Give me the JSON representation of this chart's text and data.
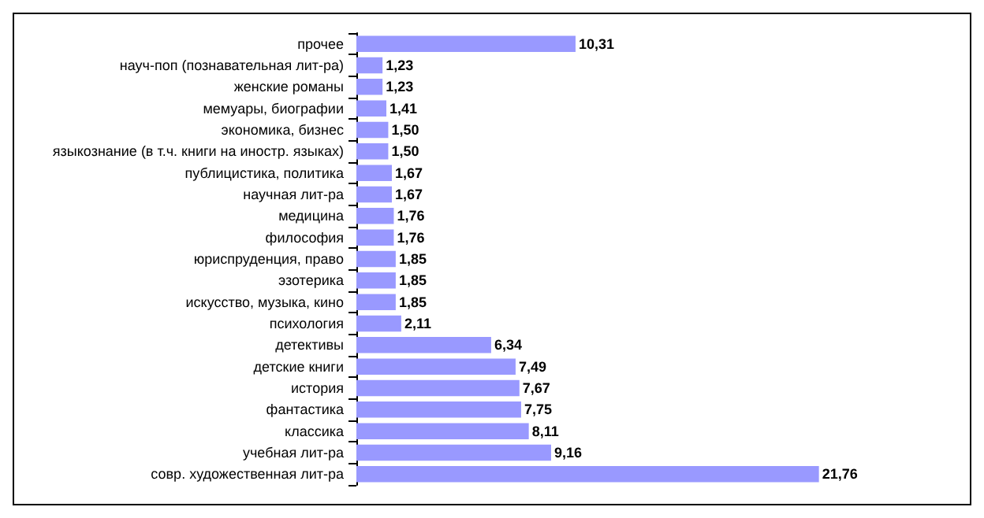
{
  "chart_data": {
    "type": "bar",
    "orientation": "horizontal",
    "color": "#9999ff",
    "categories": [
      "прочее",
      "науч-поп (познавательная лит-ра)",
      "женские романы",
      "мемуары, биографии",
      "экономика, бизнес",
      "языкознание (в т.ч. книги на иностр. языках)",
      "публицистика, политика",
      "научная лит-ра",
      "медицина",
      "философия",
      "юриспруденция, право",
      "эзотерика",
      "искусство, музыка, кино",
      "психология",
      "детективы",
      "детские книги",
      "история",
      "фантастика",
      "классика",
      "учебная лит-ра",
      "совр. художественная лит-ра"
    ],
    "values": [
      10.31,
      1.23,
      1.23,
      1.41,
      1.5,
      1.5,
      1.67,
      1.67,
      1.76,
      1.76,
      1.85,
      1.85,
      1.85,
      2.11,
      6.34,
      7.49,
      7.67,
      7.75,
      8.11,
      9.16,
      21.76
    ],
    "value_labels": [
      "10,31",
      "1,23",
      "1,23",
      "1,41",
      "1,50",
      "1,50",
      "1,67",
      "1,67",
      "1,76",
      "1,76",
      "1,85",
      "1,85",
      "1,85",
      "2,11",
      "6,34",
      "7,49",
      "7,67",
      "7,75",
      "8,11",
      "9,16",
      "21,76"
    ],
    "tick_labels": "y"
  }
}
